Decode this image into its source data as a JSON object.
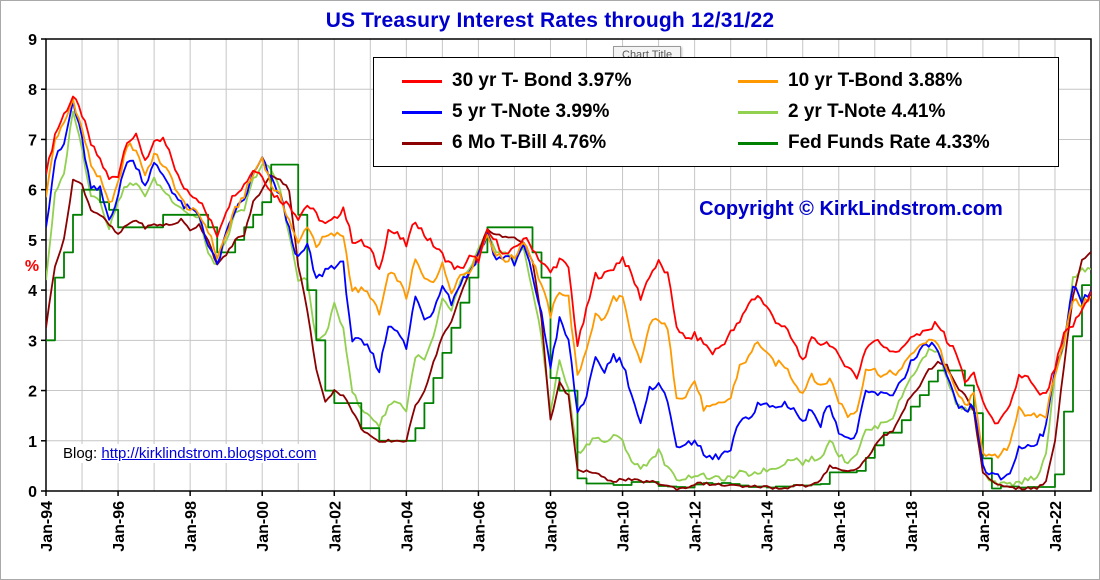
{
  "chart": {
    "title": "US Treasury Interest Rates through 12/31/22",
    "title_color": "#0000cc",
    "tooltip": "Chart Title",
    "copyright": "Copyright © KirkLindstrom.com",
    "copyright_color": "#0000cc",
    "blog_prefix": "Blog:",
    "blog_url": "http://kirklindstrom.blogspot.com",
    "link_color": "#0000dd"
  },
  "chart_data": {
    "type": "line",
    "title": "US Treasury Interest Rates through 12/31/22",
    "xlabel": "",
    "ylabel": "%",
    "ylabel_color": "#ff0000",
    "grid": true,
    "legend_position": "top-center-inside",
    "xlim": [
      1994,
      2023
    ],
    "ylim": [
      0,
      9
    ],
    "yticks": [
      0,
      1,
      2,
      3,
      4,
      5,
      6,
      7,
      8,
      9
    ],
    "xtick_years": [
      1994,
      1996,
      1998,
      2000,
      2002,
      2004,
      2006,
      2008,
      2010,
      2012,
      2014,
      2016,
      2018,
      2020,
      2022
    ],
    "xtick_labels": [
      "Jan-94",
      "Jan-96",
      "Jan-98",
      "Jan-00",
      "Jan-02",
      "Jan-04",
      "Jan-06",
      "Jan-08",
      "Jan-10",
      "Jan-12",
      "Jan-14",
      "Jan-16",
      "Jan-18",
      "Jan-20",
      "Jan-22"
    ],
    "x_start": 1994,
    "x_step": 0.25,
    "draw_order": [
      3,
      5,
      4,
      2,
      1,
      0
    ],
    "series": [
      {
        "name": "30 yr T-Bond",
        "legend_label": "30 yr T- Bond 3.97%",
        "end_value": 3.97,
        "color": "#ff0000",
        "noise": 0.07,
        "values": [
          6.3,
          7.1,
          7.5,
          7.85,
          7.5,
          6.9,
          6.6,
          6.2,
          6.3,
          7.0,
          7.05,
          6.6,
          6.9,
          7.0,
          6.6,
          6.1,
          5.95,
          5.8,
          5.45,
          5.1,
          5.6,
          5.95,
          6.1,
          6.4,
          6.3,
          5.95,
          5.8,
          5.7,
          5.45,
          5.7,
          5.5,
          5.3,
          5.4,
          5.65,
          5.0,
          4.95,
          4.8,
          4.4,
          5.2,
          5.1,
          4.9,
          5.4,
          5.1,
          4.9,
          4.7,
          4.5,
          4.4,
          4.65,
          4.6,
          5.15,
          4.95,
          4.7,
          4.8,
          5.05,
          4.85,
          4.55,
          4.35,
          4.6,
          4.45,
          2.9,
          3.6,
          4.3,
          4.3,
          4.45,
          4.65,
          4.3,
          3.85,
          4.3,
          4.55,
          4.3,
          3.3,
          3.0,
          3.1,
          2.95,
          2.75,
          2.9,
          3.15,
          3.35,
          3.75,
          3.9,
          3.65,
          3.4,
          3.25,
          2.95,
          2.6,
          3.0,
          2.95,
          2.95,
          2.65,
          2.5,
          2.25,
          2.85,
          3.0,
          2.9,
          2.8,
          2.8,
          3.1,
          3.1,
          3.2,
          3.35,
          3.0,
          2.75,
          2.2,
          2.3,
          1.8,
          1.4,
          1.4,
          1.65,
          2.3,
          2.25,
          1.95,
          1.9,
          2.45,
          3.1,
          3.3,
          3.6,
          3.97
        ]
      },
      {
        "name": "10 yr T-Bond",
        "legend_label": "10 yr T-Bond 3.88%",
        "end_value": 3.88,
        "color": "#ff9900",
        "noise": 0.07,
        "values": [
          5.85,
          7.0,
          7.3,
          7.8,
          7.2,
          6.5,
          6.2,
          5.7,
          6.1,
          6.9,
          6.8,
          6.3,
          6.7,
          6.5,
          6.2,
          5.8,
          5.6,
          5.5,
          5.2,
          4.65,
          5.1,
          5.6,
          5.9,
          6.3,
          6.65,
          6.1,
          5.85,
          5.4,
          4.9,
          5.3,
          4.9,
          5.05,
          5.1,
          5.1,
          4.0,
          4.0,
          3.9,
          3.5,
          4.3,
          4.25,
          3.85,
          4.6,
          4.2,
          4.2,
          4.5,
          4.0,
          4.3,
          4.4,
          4.7,
          5.1,
          4.7,
          4.6,
          4.65,
          5.0,
          4.6,
          4.1,
          3.5,
          4.0,
          3.85,
          2.25,
          2.85,
          3.5,
          3.4,
          3.85,
          3.85,
          3.0,
          2.55,
          3.3,
          3.45,
          3.2,
          1.9,
          1.9,
          2.2,
          1.65,
          1.65,
          1.75,
          1.85,
          2.5,
          2.65,
          3.0,
          2.7,
          2.55,
          2.5,
          2.2,
          1.95,
          2.35,
          2.05,
          2.25,
          1.8,
          1.5,
          1.6,
          2.45,
          2.4,
          2.3,
          2.35,
          2.4,
          2.75,
          2.85,
          3.05,
          2.95,
          2.4,
          2.0,
          1.7,
          1.9,
          0.8,
          0.65,
          0.7,
          0.95,
          1.7,
          1.45,
          1.5,
          1.5,
          2.35,
          3.0,
          3.8,
          3.7,
          3.88
        ]
      },
      {
        "name": "5 yr T-Note",
        "legend_label": "5 yr T-Note 3.99%",
        "end_value": 3.99,
        "color": "#0000ff",
        "noise": 0.08,
        "values": [
          5.25,
          6.6,
          6.9,
          7.75,
          7.0,
          6.0,
          6.0,
          5.4,
          5.9,
          6.6,
          6.5,
          6.1,
          6.5,
          6.3,
          6.0,
          5.7,
          5.6,
          5.5,
          4.9,
          4.5,
          5.1,
          5.6,
          5.8,
          6.3,
          6.6,
          6.2,
          5.9,
          5.2,
          4.6,
          4.9,
          4.2,
          4.4,
          4.5,
          4.5,
          3.0,
          2.95,
          2.8,
          2.4,
          3.3,
          3.25,
          2.8,
          3.9,
          3.4,
          3.6,
          4.15,
          3.75,
          4.15,
          4.35,
          4.7,
          5.1,
          4.6,
          4.7,
          4.5,
          4.9,
          4.3,
          3.5,
          2.5,
          3.4,
          3.0,
          1.55,
          1.9,
          2.6,
          2.4,
          2.7,
          2.55,
          1.95,
          1.3,
          2.0,
          2.2,
          1.75,
          0.95,
          0.85,
          1.05,
          0.7,
          0.65,
          0.72,
          0.8,
          1.4,
          1.4,
          1.75,
          1.7,
          1.65,
          1.75,
          1.65,
          1.35,
          1.65,
          1.35,
          1.75,
          1.2,
          1.0,
          1.15,
          1.95,
          1.95,
          1.9,
          1.95,
          2.2,
          2.55,
          2.75,
          2.95,
          2.8,
          2.25,
          1.75,
          1.55,
          1.7,
          0.5,
          0.3,
          0.25,
          0.36,
          0.85,
          0.9,
          1.0,
          1.25,
          2.45,
          3.0,
          4.05,
          3.8,
          3.99
        ]
      },
      {
        "name": "2 yr T-Note",
        "legend_label": "2 yr T-Note 4.41%",
        "end_value": 4.41,
        "color": "#92d050",
        "noise": 0.05,
        "values": [
          4.2,
          5.9,
          6.3,
          7.6,
          6.8,
          5.9,
          5.8,
          5.2,
          5.8,
          6.1,
          6.1,
          5.9,
          6.2,
          6.0,
          5.8,
          5.65,
          5.5,
          5.45,
          4.7,
          4.5,
          5.0,
          5.5,
          5.6,
          6.2,
          6.5,
          6.4,
          6.0,
          5.1,
          4.2,
          4.2,
          3.0,
          3.1,
          3.7,
          3.25,
          2.0,
          1.6,
          1.5,
          1.3,
          1.7,
          1.8,
          1.6,
          2.7,
          2.6,
          3.05,
          3.8,
          3.6,
          4.15,
          4.4,
          4.8,
          5.15,
          4.7,
          4.8,
          4.55,
          4.85,
          4.0,
          3.05,
          1.6,
          2.6,
          2.0,
          0.75,
          0.9,
          1.1,
          0.95,
          1.1,
          1.0,
          0.6,
          0.45,
          0.6,
          0.8,
          0.45,
          0.25,
          0.25,
          0.33,
          0.3,
          0.25,
          0.25,
          0.25,
          0.36,
          0.33,
          0.38,
          0.42,
          0.46,
          0.57,
          0.66,
          0.56,
          0.64,
          0.63,
          1.05,
          0.72,
          0.58,
          0.76,
          1.2,
          1.25,
          1.38,
          1.47,
          1.89,
          2.27,
          2.52,
          2.81,
          2.8,
          2.27,
          1.75,
          1.62,
          1.58,
          0.35,
          0.16,
          0.13,
          0.13,
          0.16,
          0.25,
          0.28,
          0.73,
          2.28,
          2.92,
          4.22,
          4.4,
          4.41
        ]
      },
      {
        "name": "6 Mo T-Bill",
        "legend_label": "6 Mo T-Bill 4.76%",
        "end_value": 4.76,
        "color": "#8b0000",
        "noise": 0.03,
        "values": [
          3.25,
          4.5,
          5.0,
          6.2,
          6.1,
          5.6,
          5.5,
          5.3,
          5.1,
          5.3,
          5.4,
          5.25,
          5.3,
          5.3,
          5.3,
          5.4,
          5.2,
          5.3,
          5.0,
          4.5,
          4.7,
          5.0,
          5.1,
          5.75,
          6.0,
          6.3,
          6.2,
          6.0,
          4.5,
          3.6,
          2.4,
          1.8,
          2.0,
          1.9,
          1.6,
          1.25,
          1.1,
          0.95,
          1.0,
          1.0,
          1.0,
          1.7,
          2.0,
          2.55,
          3.1,
          3.35,
          3.9,
          4.35,
          4.75,
          5.2,
          5.1,
          5.05,
          5.05,
          4.95,
          4.6,
          3.4,
          1.4,
          2.15,
          1.9,
          0.4,
          0.4,
          0.35,
          0.25,
          0.2,
          0.23,
          0.22,
          0.19,
          0.19,
          0.15,
          0.1,
          0.05,
          0.06,
          0.14,
          0.15,
          0.13,
          0.12,
          0.11,
          0.09,
          0.07,
          0.1,
          0.08,
          0.06,
          0.05,
          0.12,
          0.1,
          0.11,
          0.2,
          0.5,
          0.45,
          0.38,
          0.45,
          0.62,
          0.9,
          1.1,
          1.2,
          1.53,
          1.9,
          2.1,
          2.4,
          2.56,
          2.5,
          2.1,
          1.9,
          1.6,
          0.35,
          0.18,
          0.11,
          0.09,
          0.05,
          0.05,
          0.05,
          0.19,
          1.0,
          2.5,
          3.9,
          4.6,
          4.76
        ]
      },
      {
        "name": "Fed Funds Rate",
        "legend_label": "Fed Funds Rate 4.33%",
        "end_value": 4.33,
        "color": "#008000",
        "step": true,
        "noise": 0,
        "values": [
          3.0,
          4.25,
          4.75,
          5.5,
          6.0,
          6.0,
          5.75,
          5.6,
          5.25,
          5.25,
          5.25,
          5.25,
          5.25,
          5.5,
          5.5,
          5.5,
          5.5,
          5.5,
          5.25,
          4.75,
          4.75,
          5.0,
          5.25,
          5.5,
          5.75,
          6.5,
          6.5,
          6.5,
          5.5,
          4.0,
          3.0,
          2.0,
          1.75,
          1.75,
          1.75,
          1.25,
          1.25,
          1.0,
          1.0,
          1.0,
          1.0,
          1.25,
          1.75,
          2.25,
          2.75,
          3.25,
          3.75,
          4.25,
          4.75,
          5.25,
          5.25,
          5.25,
          5.25,
          5.25,
          4.75,
          4.25,
          2.25,
          2.0,
          2.0,
          0.25,
          0.15,
          0.15,
          0.15,
          0.12,
          0.12,
          0.18,
          0.18,
          0.18,
          0.1,
          0.09,
          0.08,
          0.07,
          0.13,
          0.16,
          0.14,
          0.16,
          0.14,
          0.11,
          0.08,
          0.09,
          0.07,
          0.09,
          0.09,
          0.12,
          0.11,
          0.13,
          0.14,
          0.37,
          0.37,
          0.37,
          0.4,
          0.66,
          0.91,
          1.16,
          1.16,
          1.41,
          1.68,
          1.91,
          2.18,
          2.4,
          2.4,
          2.4,
          2.1,
          1.55,
          0.65,
          0.05,
          0.09,
          0.09,
          0.07,
          0.08,
          0.08,
          0.08,
          0.33,
          1.58,
          3.08,
          4.1,
          4.33
        ]
      }
    ]
  }
}
